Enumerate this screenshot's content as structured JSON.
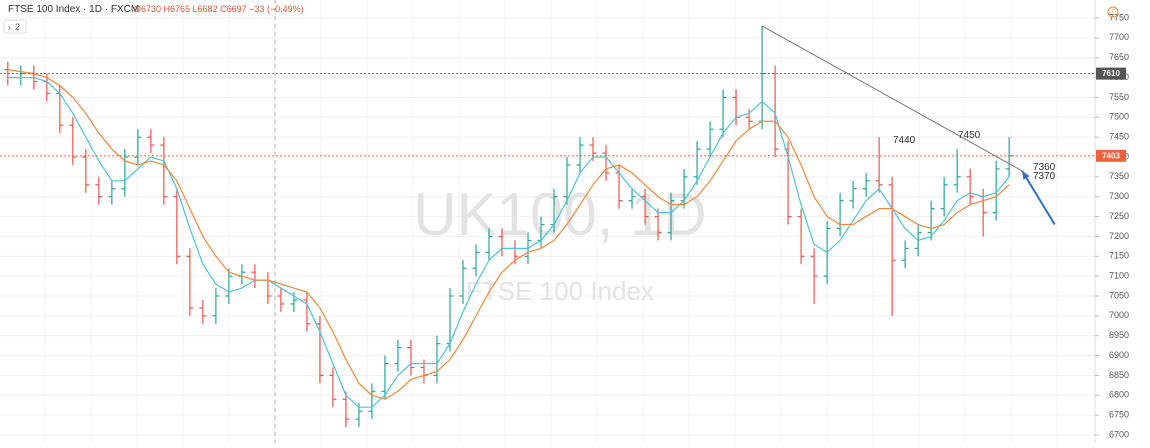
{
  "chart_data": {
    "type": "ohlc",
    "title": "FTSE 100 Index · 1D · FXCM",
    "ohlc_readout": "O6730 H6765 L6682 C6697 −33 (−0.49%)",
    "indicator_count": "2",
    "watermark": "UK100, 1D",
    "watermark_subtitle": "FTSE 100 Index",
    "up_color": "#26a69a",
    "down_color": "#ef5350",
    "grid": true,
    "ylim": [
      6700,
      7750
    ],
    "yticks": [
      6700,
      6750,
      6800,
      6850,
      6900,
      6950,
      7000,
      7050,
      7100,
      7150,
      7200,
      7250,
      7300,
      7350,
      7400,
      7450,
      7500,
      7550,
      7600,
      7650,
      7700,
      7750
    ],
    "xlim": [
      -0.6,
      83.6
    ],
    "bars": [
      [
        7620,
        7640,
        7580,
        7600
      ],
      [
        7600,
        7630,
        7580,
        7610
      ],
      [
        7610,
        7630,
        7570,
        7590
      ],
      [
        7590,
        7610,
        7540,
        7560
      ],
      [
        7560,
        7580,
        7460,
        7480
      ],
      [
        7480,
        7500,
        7380,
        7400
      ],
      [
        7400,
        7420,
        7310,
        7330
      ],
      [
        7330,
        7350,
        7280,
        7300
      ],
      [
        7300,
        7340,
        7280,
        7320
      ],
      [
        7320,
        7420,
        7300,
        7400
      ],
      [
        7400,
        7470,
        7380,
        7450
      ],
      [
        7450,
        7470,
        7410,
        7430
      ],
      [
        7430,
        7450,
        7280,
        7300
      ],
      [
        7300,
        7320,
        7130,
        7150
      ],
      [
        7150,
        7170,
        7000,
        7020
      ],
      [
        7020,
        7040,
        6980,
        7000
      ],
      [
        7000,
        7070,
        6980,
        7050
      ],
      [
        7050,
        7120,
        7030,
        7100
      ],
      [
        7100,
        7130,
        7080,
        7110
      ],
      [
        7110,
        7130,
        7070,
        7090
      ],
      [
        7090,
        7110,
        7030,
        7050
      ],
      [
        7050,
        7070,
        7010,
        7030
      ],
      [
        7030,
        7060,
        7010,
        7040
      ],
      [
        7040,
        7060,
        6960,
        6980
      ],
      [
        6980,
        7000,
        6830,
        6850
      ],
      [
        6850,
        6870,
        6770,
        6790
      ],
      [
        6790,
        6810,
        6720,
        6740
      ],
      [
        6740,
        6780,
        6720,
        6760
      ],
      [
        6760,
        6830,
        6740,
        6810
      ],
      [
        6810,
        6900,
        6790,
        6880
      ],
      [
        6880,
        6940,
        6860,
        6920
      ],
      [
        6920,
        6940,
        6850,
        6870
      ],
      [
        6870,
        6890,
        6830,
        6850
      ],
      [
        6850,
        6950,
        6830,
        6930
      ],
      [
        6930,
        7070,
        6910,
        7050
      ],
      [
        7050,
        7140,
        7030,
        7120
      ],
      [
        7120,
        7180,
        7100,
        7160
      ],
      [
        7160,
        7220,
        7140,
        7200
      ],
      [
        7200,
        7220,
        7150,
        7170
      ],
      [
        7170,
        7190,
        7130,
        7150
      ],
      [
        7150,
        7210,
        7130,
        7190
      ],
      [
        7190,
        7250,
        7170,
        7230
      ],
      [
        7230,
        7320,
        7210,
        7300
      ],
      [
        7300,
        7400,
        7280,
        7380
      ],
      [
        7380,
        7450,
        7360,
        7430
      ],
      [
        7430,
        7450,
        7390,
        7410
      ],
      [
        7410,
        7430,
        7340,
        7360
      ],
      [
        7360,
        7380,
        7270,
        7290
      ],
      [
        7290,
        7320,
        7270,
        7300
      ],
      [
        7300,
        7320,
        7230,
        7250
      ],
      [
        7250,
        7270,
        7190,
        7210
      ],
      [
        7210,
        7310,
        7190,
        7290
      ],
      [
        7290,
        7370,
        7270,
        7350
      ],
      [
        7350,
        7440,
        7330,
        7420
      ],
      [
        7420,
        7490,
        7400,
        7470
      ],
      [
        7470,
        7570,
        7450,
        7550
      ],
      [
        7550,
        7570,
        7480,
        7500
      ],
      [
        7500,
        7520,
        7470,
        7490
      ],
      [
        7490,
        7730,
        7470,
        7610
      ],
      [
        7610,
        7630,
        7400,
        7420
      ],
      [
        7420,
        7440,
        7230,
        7250
      ],
      [
        7250,
        7270,
        7130,
        7150
      ],
      [
        7150,
        7170,
        7030,
        7100
      ],
      [
        7100,
        7240,
        7080,
        7220
      ],
      [
        7220,
        7310,
        7200,
        7290
      ],
      [
        7290,
        7340,
        7270,
        7320
      ],
      [
        7320,
        7360,
        7300,
        7340
      ],
      [
        7340,
        7450,
        7310,
        7330
      ],
      [
        7330,
        7350,
        7000,
        7140
      ],
      [
        7140,
        7190,
        7120,
        7170
      ],
      [
        7170,
        7230,
        7150,
        7210
      ],
      [
        7210,
        7290,
        7190,
        7270
      ],
      [
        7270,
        7350,
        7250,
        7330
      ],
      [
        7330,
        7420,
        7310,
        7350
      ],
      [
        7350,
        7370,
        7280,
        7300
      ],
      [
        7300,
        7320,
        7200,
        7260
      ],
      [
        7260,
        7390,
        7240,
        7370
      ],
      [
        7370,
        7450,
        7350,
        7403
      ]
    ],
    "series": [
      {
        "color": "#4fc3d9",
        "values": [
          7600,
          7600,
          7600,
          7590,
          7560,
          7510,
          7450,
          7390,
          7340,
          7340,
          7370,
          7400,
          7390,
          7320,
          7220,
          7130,
          7080,
          7060,
          7070,
          7090,
          7090,
          7070,
          7050,
          7030,
          6960,
          6880,
          6800,
          6770,
          6770,
          6800,
          6850,
          6880,
          6880,
          6880,
          6930,
          7010,
          7080,
          7140,
          7170,
          7170,
          7170,
          7190,
          7230,
          7290,
          7360,
          7400,
          7400,
          7360,
          7320,
          7290,
          7260,
          7260,
          7290,
          7340,
          7400,
          7460,
          7500,
          7510,
          7540,
          7510,
          7400,
          7280,
          7180,
          7160,
          7190,
          7240,
          7290,
          7320,
          7270,
          7220,
          7190,
          7200,
          7240,
          7290,
          7310,
          7300,
          7310,
          7350
        ]
      },
      {
        "color": "#f0883e",
        "values": [
          7620,
          7615,
          7610,
          7600,
          7580,
          7550,
          7510,
          7460,
          7420,
          7390,
          7380,
          7390,
          7380,
          7340,
          7270,
          7200,
          7150,
          7110,
          7100,
          7090,
          7090,
          7080,
          7070,
          7060,
          7020,
          6960,
          6890,
          6830,
          6800,
          6790,
          6810,
          6840,
          6850,
          6860,
          6890,
          6940,
          7000,
          7060,
          7110,
          7140,
          7160,
          7170,
          7190,
          7230,
          7280,
          7330,
          7370,
          7380,
          7360,
          7330,
          7300,
          7280,
          7280,
          7300,
          7340,
          7390,
          7440,
          7470,
          7490,
          7490,
          7450,
          7380,
          7300,
          7250,
          7230,
          7230,
          7250,
          7270,
          7270,
          7250,
          7230,
          7220,
          7230,
          7260,
          7280,
          7290,
          7300,
          7330
        ]
      }
    ],
    "trendline": {
      "x": [
        58,
        78
      ],
      "y": [
        7730,
        7365
      ],
      "color": "#777777"
    },
    "arrow": {
      "x": [
        78,
        80.5
      ],
      "y": [
        7365,
        7230
      ],
      "color": "#2f6fc4"
    },
    "price_lines": [
      {
        "value": 7610,
        "color": "#555555"
      },
      {
        "value": 7403,
        "color": "#f0603a"
      }
    ],
    "annotations": [
      "7440",
      "7450",
      "7360",
      "7370"
    ]
  }
}
